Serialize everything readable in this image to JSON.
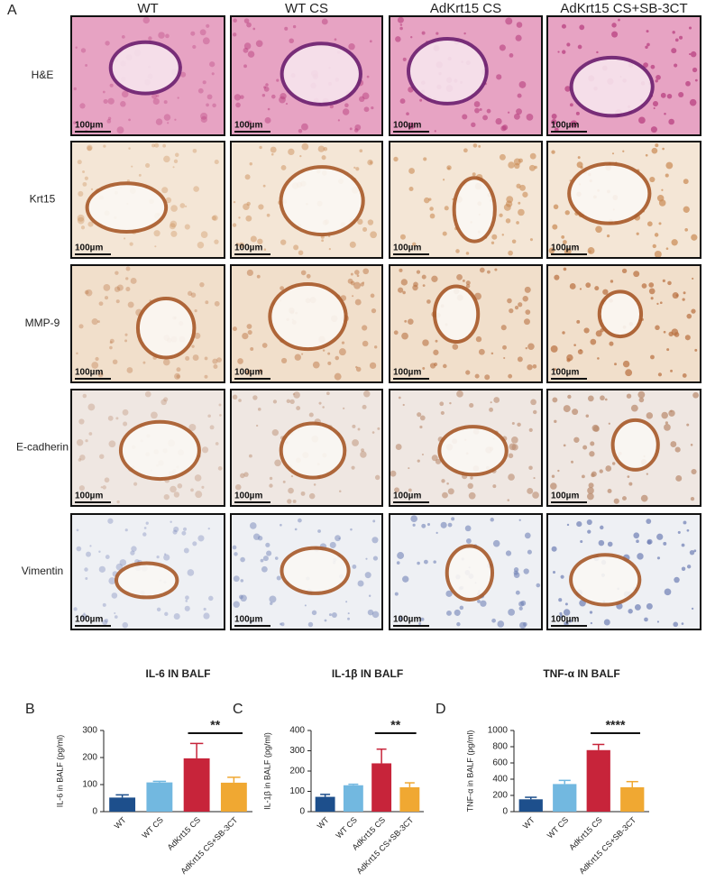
{
  "panel_a": {
    "label": "A",
    "columns": [
      "WT",
      "WT CS",
      "AdKrt15 CS",
      "AdKrt15 CS+SB-3CT"
    ],
    "rows": [
      "H&E",
      "Krt15",
      "MMP-9",
      "E-cadherin",
      "Vimentin"
    ],
    "scale_bar": "100µm"
  },
  "chart_data": [
    {
      "type": "bar",
      "panel": "B",
      "title": "IL-6 IN BALF",
      "y_label": "IL-6 in BALF (pg/ml)",
      "categories": [
        "WT",
        "WT CS",
        "AdKrt15 CS",
        "AdKrt15 CS+SB-3CT"
      ],
      "values": [
        52,
        108,
        197,
        107
      ],
      "errors": [
        10,
        4,
        55,
        20
      ],
      "colors": [
        "#1d4f8c",
        "#72b8e0",
        "#c7243a",
        "#f0a832"
      ],
      "ylim": [
        0,
        300
      ],
      "yticks": [
        0,
        100,
        200,
        300
      ],
      "annotation": "**"
    },
    {
      "type": "bar",
      "panel": "C",
      "title": "IL-1β IN BALF",
      "y_label": "IL-1β in BALF (pg/ml)",
      "categories": [
        "WT",
        "WT CS",
        "AdKrt15 CS",
        "AdKrt15 CS+SB-3CT"
      ],
      "values": [
        73,
        130,
        238,
        120
      ],
      "errors": [
        12,
        5,
        70,
        22
      ],
      "colors": [
        "#1d4f8c",
        "#72b8e0",
        "#c7243a",
        "#f0a832"
      ],
      "ylim": [
        0,
        400
      ],
      "yticks": [
        0,
        100,
        200,
        300,
        400
      ],
      "annotation": "**"
    },
    {
      "type": "bar",
      "panel": "D",
      "title": "TNF-α IN BALF",
      "y_label": "TNF-α in BALF (pg/ml)",
      "categories": [
        "WT",
        "WT CS",
        "AdKrt15 CS",
        "AdKrt15 CS+SB-3CT"
      ],
      "values": [
        152,
        340,
        758,
        300
      ],
      "errors": [
        25,
        45,
        70,
        70
      ],
      "colors": [
        "#1d4f8c",
        "#72b8e0",
        "#c7243a",
        "#f0a832"
      ],
      "ylim": [
        0,
        1000
      ],
      "yticks": [
        0,
        200,
        400,
        600,
        800,
        1000
      ],
      "annotation": "****"
    }
  ]
}
